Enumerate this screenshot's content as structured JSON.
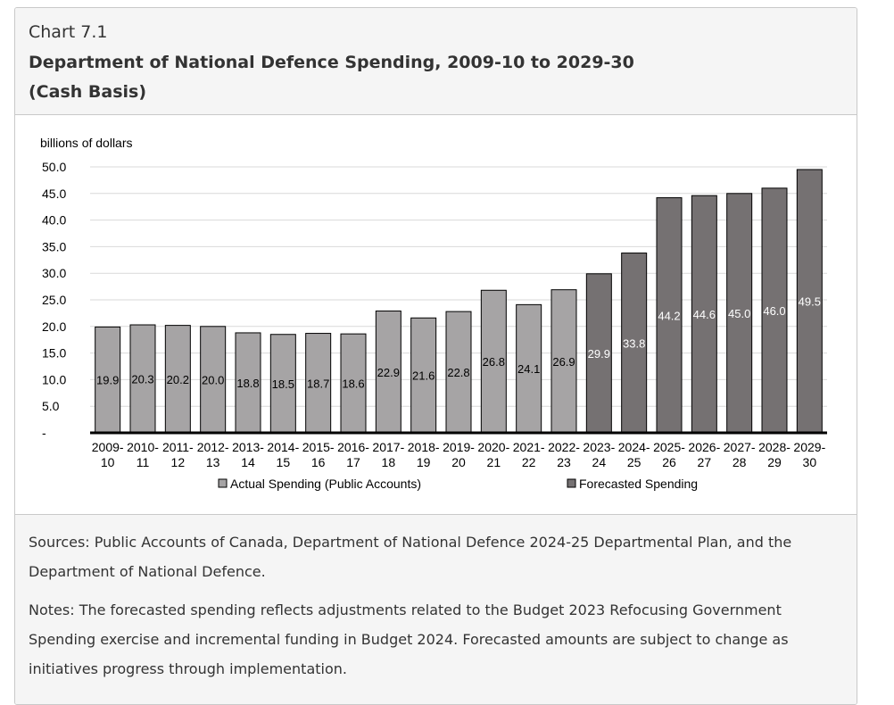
{
  "header": {
    "label": "Chart 7.1",
    "title_line1": "Department of National Defence Spending, 2009-10 to 2029-30",
    "title_line2": "(Cash Basis)"
  },
  "footer": {
    "sources": "Sources: Public Accounts of Canada, Department of National Defence 2024-25 Departmental Plan, and the Department of National Defence.",
    "notes": "Notes: The forecasted spending reflects adjustments related to the Budget 2023 Refocusing Government Spending exercise and incremental funding in Budget 2024. Forecasted amounts are subject to change as initiatives progress through implementation."
  },
  "chart_data": {
    "type": "bar",
    "title": "",
    "ylabel": "billions of dollars",
    "xlabel": "",
    "ylim": [
      0,
      50
    ],
    "yticks": [
      0,
      5,
      10,
      15,
      20,
      25,
      30,
      35,
      40,
      45,
      50
    ],
    "ytick_labels": [
      "-",
      "5.0",
      "10.0",
      "15.0",
      "20.0",
      "25.0",
      "30.0",
      "35.0",
      "40.0",
      "45.0",
      "50.0"
    ],
    "grid": "horizontal",
    "legend_position": "bottom",
    "categories": [
      [
        "2009-",
        "10"
      ],
      [
        "2010-",
        "11"
      ],
      [
        "2011-",
        "12"
      ],
      [
        "2012-",
        "13"
      ],
      [
        "2013-",
        "14"
      ],
      [
        "2014-",
        "15"
      ],
      [
        "2015-",
        "16"
      ],
      [
        "2016-",
        "17"
      ],
      [
        "2017-",
        "18"
      ],
      [
        "2018-",
        "19"
      ],
      [
        "2019-",
        "20"
      ],
      [
        "2020-",
        "21"
      ],
      [
        "2021-",
        "22"
      ],
      [
        "2022-",
        "23"
      ],
      [
        "2023-",
        "24"
      ],
      [
        "2024-",
        "25"
      ],
      [
        "2025-",
        "26"
      ],
      [
        "2026-",
        "27"
      ],
      [
        "2027-",
        "28"
      ],
      [
        "2028-",
        "29"
      ],
      [
        "2029-",
        "30"
      ]
    ],
    "values": [
      19.9,
      20.3,
      20.2,
      20.0,
      18.8,
      18.5,
      18.7,
      18.6,
      22.9,
      21.6,
      22.8,
      26.8,
      24.1,
      26.9,
      29.9,
      33.8,
      44.2,
      44.6,
      45.0,
      46.0,
      49.5
    ],
    "value_labels": [
      "19.9",
      "20.3",
      "20.2",
      "20.0",
      "18.8",
      "18.5",
      "18.7",
      "18.6",
      "22.9",
      "21.6",
      "22.8",
      "26.8",
      "24.1",
      "26.9",
      "29.9",
      "33.8",
      "44.2",
      "44.6",
      "45.0",
      "46.0",
      "49.5"
    ],
    "series_index": [
      0,
      0,
      0,
      0,
      0,
      0,
      0,
      0,
      0,
      0,
      0,
      0,
      0,
      0,
      1,
      1,
      1,
      1,
      1,
      1,
      1
    ],
    "series": [
      {
        "name": "Actual Spending (Public Accounts)",
        "color": "#a6a4a5",
        "label_color": "#000000"
      },
      {
        "name": "Forecasted Spending",
        "color": "#757172",
        "label_color": "#ffffff"
      }
    ]
  }
}
